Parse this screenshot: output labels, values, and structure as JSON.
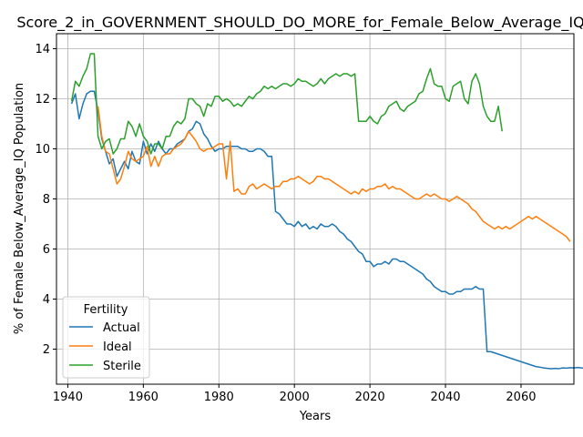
{
  "chart_data": {
    "type": "line",
    "title": "Score_2_in_GOVERNMENT_SHOULD_DO_MORE_for_Female_Below_Average_IQ",
    "xlabel": "Years",
    "ylabel": "% of Female Below_Average_IQ Population",
    "xlim": [
      1937,
      2074
    ],
    "ylim": [
      0.6,
      14.6
    ],
    "xticks": [
      1940,
      1960,
      1980,
      2000,
      2020,
      2040,
      2060
    ],
    "yticks": [
      2,
      4,
      6,
      8,
      10,
      12,
      14
    ],
    "grid": true,
    "legend": {
      "title": "Fertility",
      "position": "lower-left"
    },
    "series": [
      {
        "name": "Actual",
        "color": "#1f77b4",
        "x_start": 1941,
        "values": [
          11.8,
          12.2,
          11.2,
          11.8,
          12.2,
          12.3,
          12.3,
          11.5,
          10.4,
          9.9,
          9.4,
          9.6,
          8.9,
          9.2,
          9.5,
          9.2,
          9.9,
          9.5,
          9.4,
          10.3,
          9.8,
          10.2,
          9.9,
          10.3,
          10.0,
          9.8,
          10.0,
          10.0,
          10.2,
          10.3,
          10.4,
          10.7,
          10.8,
          11.1,
          11.0,
          10.6,
          10.4,
          10.1,
          9.9,
          10.0,
          10.0,
          10.1,
          10.1,
          10.1,
          10.1,
          10.0,
          10.0,
          9.9,
          9.9,
          10.0,
          10.0,
          9.9,
          9.7,
          9.7,
          7.5,
          7.4,
          7.2,
          7.0,
          7.0,
          6.9,
          7.1,
          6.9,
          7.0,
          6.8,
          6.9,
          6.8,
          7.0,
          6.9,
          6.9,
          7.0,
          6.9,
          6.7,
          6.6,
          6.4,
          6.3,
          6.1,
          5.9,
          5.8,
          5.5,
          5.5,
          5.3,
          5.4,
          5.4,
          5.5,
          5.4,
          5.6,
          5.6,
          5.5,
          5.5,
          5.4,
          5.3,
          5.2,
          5.1,
          5.0,
          4.8,
          4.7,
          4.5,
          4.4,
          4.3,
          4.3,
          4.2,
          4.2,
          4.3,
          4.3,
          4.4,
          4.4,
          4.4,
          4.5,
          4.4,
          4.4,
          1.9,
          1.9,
          1.85,
          1.8,
          1.75,
          1.7,
          1.65,
          1.6,
          1.55,
          1.5,
          1.45,
          1.4,
          1.35,
          1.3,
          1.28,
          1.25,
          1.23,
          1.22,
          1.23,
          1.22,
          1.25,
          1.24,
          1.26,
          1.25,
          1.27,
          1.25,
          1.24
        ],
        "x_values_note": "annual from 1941"
      },
      {
        "name": "Ideal",
        "color": "#ff7f0e",
        "x_start": 1948,
        "values": [
          11.7,
          10.5,
          9.9,
          9.8,
          9.2,
          8.6,
          8.8,
          9.3,
          9.9,
          9.6,
          9.5,
          9.6,
          9.7,
          10.1,
          9.3,
          9.7,
          9.3,
          9.7,
          9.8,
          9.8,
          10.0,
          10.1,
          10.2,
          10.4,
          10.7,
          10.5,
          10.3,
          10.0,
          9.9,
          10.0,
          10.0,
          10.1,
          10.2,
          10.2,
          8.8,
          10.3,
          8.3,
          8.4,
          8.2,
          8.2,
          8.5,
          8.6,
          8.4,
          8.5,
          8.6,
          8.5,
          8.4,
          8.5,
          8.5,
          8.7,
          8.7,
          8.8,
          8.8,
          8.9,
          8.8,
          8.7,
          8.6,
          8.7,
          8.9,
          8.9,
          8.8,
          8.8,
          8.7,
          8.6,
          8.5,
          8.4,
          8.3,
          8.2,
          8.3,
          8.2,
          8.4,
          8.3,
          8.4,
          8.4,
          8.5,
          8.5,
          8.6,
          8.4,
          8.5,
          8.4,
          8.4,
          8.3,
          8.2,
          8.1,
          8.0,
          8.0,
          8.1,
          8.2,
          8.1,
          8.2,
          8.1,
          8.0,
          8.0,
          7.9,
          8.0,
          8.1,
          8.0,
          7.9,
          7.8,
          7.6,
          7.5,
          7.3,
          7.1,
          7.0,
          6.9,
          6.8,
          6.9,
          6.8,
          6.9,
          6.8,
          6.9,
          7.0,
          7.1,
          7.2,
          7.3,
          7.2,
          7.3,
          7.2,
          7.1,
          7.0,
          6.9,
          6.8,
          6.7,
          6.6,
          6.5,
          6.3
        ],
        "x_values_note": "annual from 1948"
      },
      {
        "name": "Sterile",
        "color": "#2ca02c",
        "x_start": 1941,
        "values": [
          11.9,
          12.7,
          12.5,
          12.9,
          13.2,
          13.8,
          13.8,
          10.5,
          10.0,
          10.3,
          10.4,
          9.8,
          10.0,
          10.4,
          10.4,
          11.1,
          10.9,
          10.5,
          11.0,
          10.5,
          10.3,
          9.8,
          10.2,
          10.2,
          10.0,
          10.5,
          10.5,
          10.9,
          11.1,
          11.0,
          11.2,
          12.0,
          12.0,
          11.8,
          11.7,
          11.3,
          11.8,
          11.7,
          12.1,
          12.1,
          11.9,
          12.0,
          11.9,
          11.7,
          11.8,
          11.7,
          11.9,
          12.1,
          12.0,
          12.2,
          12.3,
          12.5,
          12.4,
          12.5,
          12.4,
          12.5,
          12.6,
          12.6,
          12.5,
          12.6,
          12.8,
          12.7,
          12.7,
          12.6,
          12.5,
          12.6,
          12.8,
          12.6,
          12.8,
          12.9,
          13.0,
          12.9,
          13.0,
          13.0,
          12.9,
          13.0,
          11.1,
          11.1,
          11.1,
          11.3,
          11.1,
          11.0,
          11.3,
          11.4,
          11.7,
          11.8,
          11.9,
          11.6,
          11.5,
          11.7,
          11.8,
          11.9,
          12.2,
          12.3,
          12.8,
          13.2,
          12.6,
          12.5,
          12.5,
          12.0,
          11.9,
          12.5,
          12.6,
          12.7,
          12.0,
          11.8,
          12.7,
          13.0,
          12.6,
          11.7,
          11.3,
          11.1,
          11.1,
          11.7,
          10.7
        ],
        "x_values_note": "annual from 1941"
      }
    ]
  }
}
